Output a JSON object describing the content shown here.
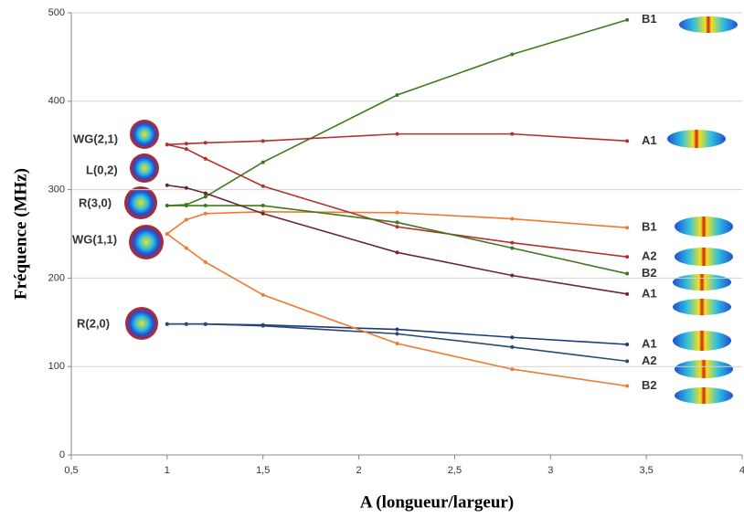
{
  "chart_data": {
    "type": "line",
    "y_label": "Fréquence (MHz)",
    "x_label": "A  (longueur/largeur)",
    "x": [
      1,
      1.1,
      1.2,
      1.5,
      2.2,
      2.8,
      3.4
    ],
    "series": [
      {
        "name": "B1",
        "color": "#3d7a1c",
        "values": [
          282,
          283,
          292,
          331,
          407,
          453,
          492
        ]
      },
      {
        "name": "A1",
        "color": "#b3302e",
        "values": [
          351,
          352,
          353,
          355,
          363,
          363,
          355
        ]
      },
      {
        "name": "B1",
        "color": "#f07a30",
        "values": [
          250,
          266,
          273,
          275,
          274,
          267,
          257
        ]
      },
      {
        "name": "A2",
        "color": "#b3302e",
        "values": [
          351,
          346,
          335,
          304,
          258,
          240,
          224
        ]
      },
      {
        "name": "B2",
        "color": "#3d7a1c",
        "values": [
          282,
          282,
          282,
          282,
          263,
          234,
          205
        ]
      },
      {
        "name": "A1",
        "color": "#6e2630",
        "values": [
          305,
          302,
          296,
          273,
          229,
          203,
          182
        ]
      },
      {
        "name": "A1",
        "color": "#1c3c78",
        "values": [
          148,
          148,
          148,
          147,
          142,
          133,
          125
        ]
      },
      {
        "name": "A2",
        "color": "#2a4870",
        "values": [
          148,
          148,
          148,
          146,
          137,
          122,
          106
        ]
      },
      {
        "name": "B2",
        "color": "#f07a30",
        "values": [
          250,
          234,
          218,
          181,
          126,
          97,
          78
        ]
      }
    ],
    "annotations": [
      {
        "text": "WG(2,1)",
        "color": "#7a2a20"
      },
      {
        "text": "L(0,2)",
        "color": "#1c3c78"
      },
      {
        "text": "R(3,0)",
        "color": "#3d7a1c"
      },
      {
        "text": "WG(1,1)",
        "color": "#f07a30"
      },
      {
        "text": "R(2,0)",
        "color": "#1c3c78"
      }
    ],
    "xlim": [
      0.5,
      4
    ],
    "xticks": [
      {
        "value": 0.5,
        "label": "0,5"
      },
      1,
      {
        "value": 1.5,
        "label": "1,5"
      },
      2,
      {
        "value": 2.5,
        "label": "2,5"
      },
      3,
      {
        "value": 3.5,
        "label": "3,5"
      },
      4
    ],
    "ylim": [
      0,
      500
    ],
    "yticks": [
      0,
      100,
      200,
      300,
      400,
      500
    ],
    "grid": true
  }
}
